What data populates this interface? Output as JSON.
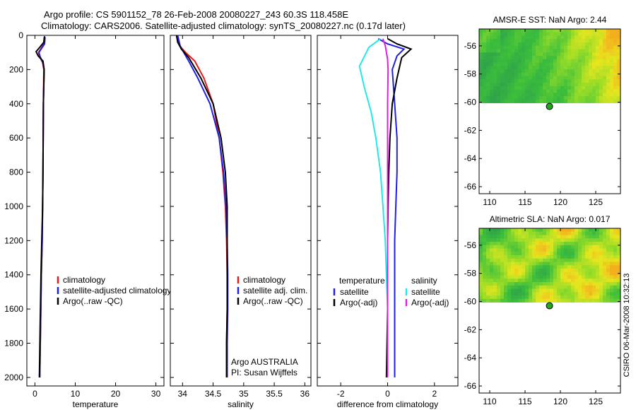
{
  "figure": {
    "title_line1": "Argo profile: CS 5901152_78 26-Feb-2008 20080227_243 60.3S 118.458E",
    "title_line2": "Climatology: CARS2006. Satellite-adjusted climatology: synTS_20080227.nc (0.17d later)",
    "credit": "CSIRO 06-Mar-2008 10:32:13",
    "colors": {
      "red": "#e41a1c",
      "blue": "#1f1fe8",
      "black": "#000000",
      "cyan": "#22e8e8",
      "magenta": "#e020e0"
    }
  },
  "chart_data": [
    {
      "type": "line",
      "id": "temperature",
      "xlabel": "temperature",
      "xlim": [
        -2,
        32
      ],
      "ylim": [
        2050,
        0
      ],
      "xticks": [
        0,
        10,
        20,
        30
      ],
      "yticks": [
        0,
        200,
        400,
        600,
        800,
        1000,
        1200,
        1400,
        1600,
        1800,
        2000
      ],
      "legend": [
        "climatology",
        "satellite-adjusted climatology",
        "Argo(..raw -QC)"
      ],
      "legend_placement": "center-right",
      "series": [
        {
          "name": "climatology",
          "color": "red",
          "x": [
            2.3,
            2.2,
            1.6,
            0.9,
            1.2,
            1.9,
            2.2,
            2.1,
            2.0,
            1.9,
            1.8,
            1.6,
            1.4,
            1.2
          ],
          "y": [
            10,
            50,
            75,
            100,
            125,
            160,
            200,
            400,
            800,
            1000,
            1200,
            1400,
            1700,
            2000
          ]
        },
        {
          "name": "satellite-adjusted climatology",
          "color": "blue",
          "x": [
            2.5,
            2.4,
            1.7,
            1.0,
            1.3,
            2.0,
            2.3,
            2.1,
            2.0,
            1.9,
            1.8,
            1.6,
            1.4,
            1.2
          ],
          "y": [
            10,
            50,
            75,
            100,
            125,
            160,
            200,
            400,
            800,
            1000,
            1200,
            1400,
            1700,
            2000
          ]
        },
        {
          "name": "Argo(..raw -QC)",
          "color": "black",
          "x": [
            2.4,
            2.2,
            1.2,
            0.3,
            0.8,
            2.0,
            2.3,
            2.1,
            2.0,
            1.9,
            1.7,
            1.5,
            1.3,
            1.1
          ],
          "y": [
            5,
            40,
            70,
            95,
            120,
            150,
            200,
            400,
            800,
            1000,
            1200,
            1400,
            1700,
            2000
          ]
        }
      ]
    },
    {
      "type": "line",
      "id": "salinity",
      "xlabel": "salinity",
      "xlim": [
        33.8,
        36.1
      ],
      "ylim": [
        2050,
        0
      ],
      "xticks": [
        34,
        34.5,
        35,
        35.5,
        36
      ],
      "annotation_lines": [
        "Argo AUSTRALIA",
        "PI: Susan Wijffels"
      ],
      "legend": [
        "climatology",
        "satellite adj. clim.",
        "Argo(..raw -QC)"
      ],
      "legend_placement": "center-right",
      "series": [
        {
          "name": "climatology",
          "color": "red",
          "x": [
            33.92,
            33.95,
            34.05,
            34.2,
            34.35,
            34.5,
            34.6,
            34.66,
            34.7,
            34.72,
            34.73,
            34.73,
            34.72,
            34.72
          ],
          "y": [
            0,
            60,
            100,
            150,
            250,
            400,
            600,
            800,
            1000,
            1200,
            1400,
            1600,
            1800,
            2000
          ]
        },
        {
          "name": "satellite adj. clim.",
          "color": "blue",
          "x": [
            33.92,
            33.96,
            34.02,
            34.1,
            34.25,
            34.45,
            34.6,
            34.67,
            34.71,
            34.73,
            34.74,
            34.74,
            34.73,
            34.73
          ],
          "y": [
            0,
            60,
            100,
            150,
            250,
            400,
            600,
            800,
            1000,
            1200,
            1400,
            1600,
            1800,
            2000
          ]
        },
        {
          "name": "Argo(..raw -QC)",
          "color": "black",
          "x": [
            33.9,
            33.92,
            33.98,
            34.1,
            34.3,
            34.5,
            34.63,
            34.7,
            34.73,
            34.73,
            34.73,
            34.73,
            34.72,
            34.72
          ],
          "y": [
            0,
            40,
            80,
            130,
            250,
            400,
            600,
            800,
            1000,
            1200,
            1400,
            1600,
            1800,
            2000
          ]
        }
      ]
    },
    {
      "type": "line",
      "id": "difference",
      "xlabel": "difference from climatology",
      "xlim": [
        -3,
        3
      ],
      "ylim": [
        2050,
        0
      ],
      "xticks": [
        -2,
        0,
        2
      ],
      "legend_temperature": {
        "title": "temperature",
        "items": [
          "satellite",
          "Argo(-adj)"
        ]
      },
      "legend_salinity": {
        "title": "salinity",
        "items": [
          "satellite",
          "Argo(-adj)"
        ]
      },
      "legend_placement": "center",
      "series": [
        {
          "name": "temperature satellite",
          "color": "blue",
          "x": [
            -0.4,
            0.0,
            0.7,
            0.4,
            0.2,
            0.3,
            0.4,
            0.4,
            0.35,
            0.3,
            0.3,
            0.3,
            0.3,
            0.3
          ],
          "y": [
            20,
            50,
            80,
            120,
            200,
            400,
            600,
            800,
            1000,
            1200,
            1400,
            1600,
            1800,
            2000
          ]
        },
        {
          "name": "temperature Argo(-adj)",
          "color": "black",
          "x": [
            0.0,
            0.4,
            1.0,
            0.6,
            0.4,
            0.2,
            0.1,
            0.05,
            0.02,
            0.0,
            0.0,
            0.0,
            -0.05
          ],
          "y": [
            20,
            50,
            80,
            130,
            250,
            400,
            600,
            800,
            1000,
            1200,
            1400,
            1600,
            2000
          ]
        },
        {
          "name": "salinity satellite",
          "color": "cyan",
          "x": [
            -0.3,
            -0.8,
            -1.2,
            -1.0,
            -0.7,
            -0.5,
            -0.3,
            -0.2,
            -0.1,
            -0.05,
            0.0,
            0.0,
            0.0
          ],
          "y": [
            20,
            70,
            180,
            300,
            450,
            600,
            800,
            1000,
            1200,
            1400,
            1600,
            1800,
            2000
          ]
        },
        {
          "name": "salinity Argo(-adj)",
          "color": "magenta",
          "x": [
            -0.2,
            -0.1,
            0.0,
            0.02,
            0.0,
            0.0,
            0.0,
            0.0,
            0.0
          ],
          "y": [
            20,
            60,
            140,
            200,
            400,
            800,
            1200,
            1600,
            2000
          ]
        }
      ]
    },
    {
      "type": "heatmap",
      "id": "sst-map",
      "title": "AMSR-E SST: NaN Argo: 2.44",
      "xlim": [
        108.5,
        128.5
      ],
      "ylim": [
        -66.5,
        -54.8
      ],
      "xticks": [
        110,
        115,
        120,
        125
      ],
      "yticks": [
        -56,
        -58,
        -60,
        -62,
        -64,
        -66
      ],
      "data_extent_lat": [
        -54.8,
        -60.05
      ],
      "marker": {
        "lon": 118.458,
        "lat": -60.3
      }
    },
    {
      "type": "heatmap",
      "id": "sla-map",
      "title": "Altimetric SLA: NaN Argo: 0.017",
      "xlim": [
        108.5,
        128.5
      ],
      "ylim": [
        -66.5,
        -54.8
      ],
      "xticks": [
        110,
        115,
        120,
        125
      ],
      "yticks": [
        -56,
        -58,
        -60,
        -62,
        -64,
        -66
      ],
      "data_extent_lat": [
        -54.8,
        -60.05
      ],
      "marker": {
        "lon": 118.458,
        "lat": -60.3
      }
    }
  ]
}
